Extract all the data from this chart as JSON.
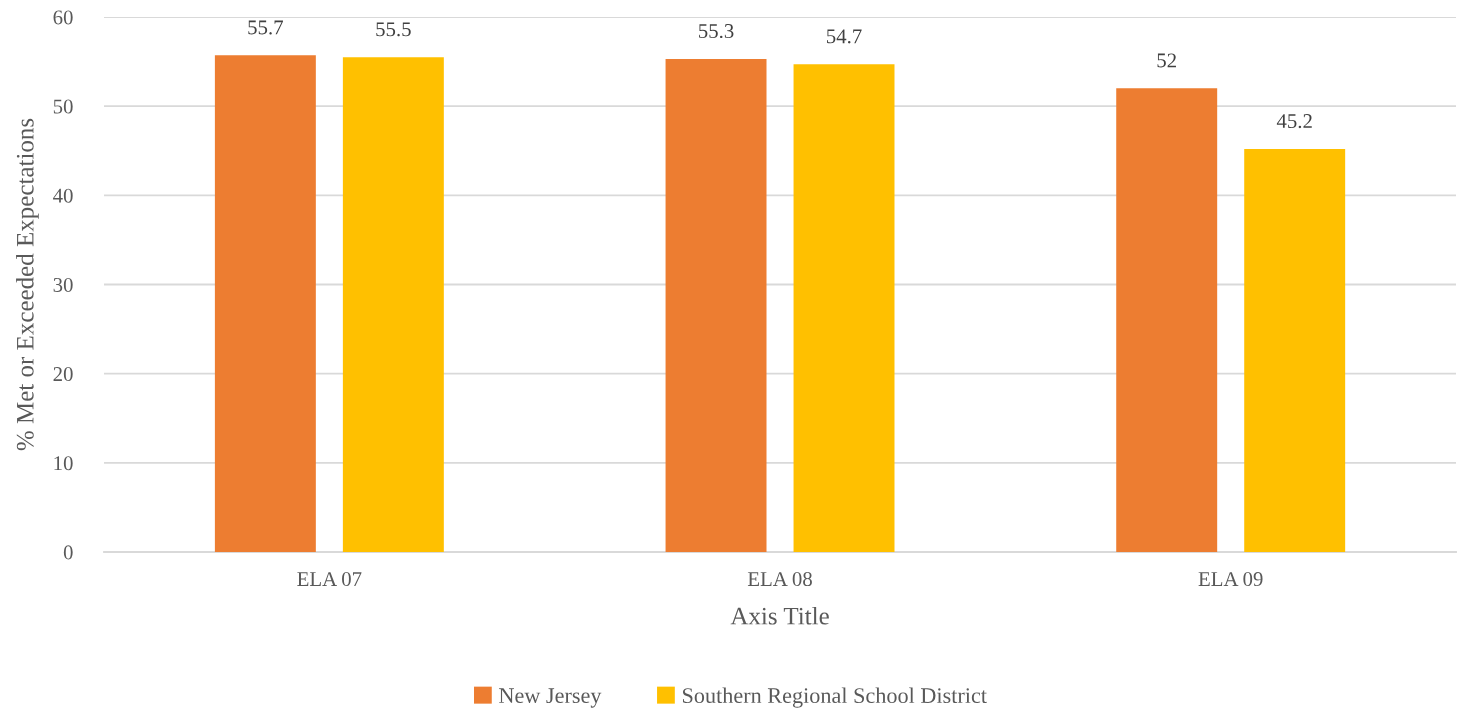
{
  "chart_data": {
    "type": "bar",
    "categories": [
      "ELA 07",
      "ELA 08",
      "ELA 09"
    ],
    "series": [
      {
        "name": "New Jersey",
        "color": "#ed7d31",
        "values": [
          55.7,
          55.3,
          52
        ]
      },
      {
        "name": "Southern Regional School District",
        "color": "#ffc000",
        "values": [
          55.5,
          54.7,
          45.2
        ]
      }
    ],
    "xlabel": "Axis Title",
    "ylabel": "% Met or Exceeded Expectations",
    "ylim": [
      0,
      60
    ],
    "yticks": [
      0,
      10,
      20,
      30,
      40,
      50,
      60
    ],
    "grid": "y",
    "legend": "bottom",
    "data_labels": true
  }
}
